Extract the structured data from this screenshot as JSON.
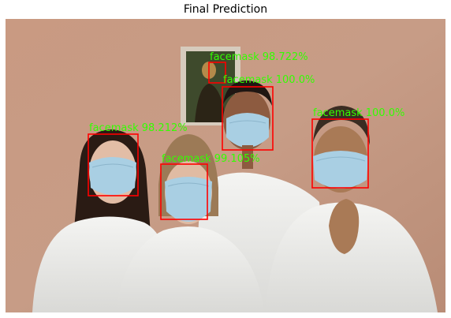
{
  "title": "Final Prediction",
  "box_color": "#ff0000",
  "label_color": "#33ff00",
  "detections": [
    {
      "label": "facemask 98.722%"
    },
    {
      "label": "facemask 100.0%"
    },
    {
      "label": "facemask 100.0%"
    },
    {
      "label": "facemask 98.212%"
    },
    {
      "label": "facemask 99.105%"
    }
  ],
  "photo": {
    "icons": [
      "mona-lisa-painting-icon",
      "person-icon",
      "face-mask-icon"
    ]
  }
}
